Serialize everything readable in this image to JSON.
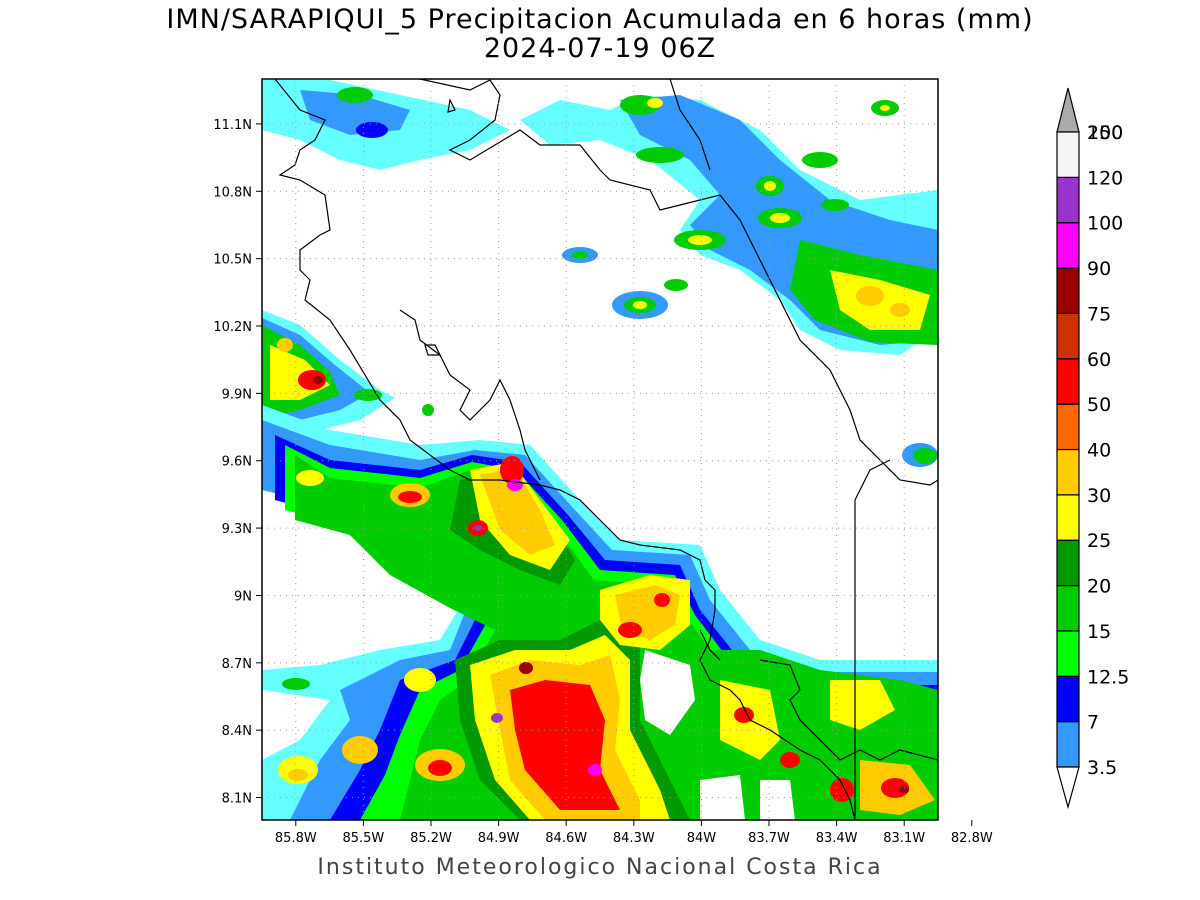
{
  "title": {
    "line1": "IMN/SARAPIQUI_5 Precipitacion Acumulada en 6 horas (mm)",
    "line2": "2024-07-19 06Z"
  },
  "footer": "Instituto Meteorologico Nacional Costa Rica",
  "map": {
    "lat_range": [
      8.0,
      11.3
    ],
    "lon_range": [
      -85.95,
      -82.95
    ],
    "lat_ticks": [
      {
        "value": 11.1,
        "label": "11.1N"
      },
      {
        "value": 10.8,
        "label": "10.8N"
      },
      {
        "value": 10.5,
        "label": "10.5N"
      },
      {
        "value": 10.2,
        "label": "10.2N"
      },
      {
        "value": 9.9,
        "label": "9.9N"
      },
      {
        "value": 9.6,
        "label": "9.6N"
      },
      {
        "value": 9.3,
        "label": "9.3N"
      },
      {
        "value": 9.0,
        "label": "9N"
      },
      {
        "value": 8.7,
        "label": "8.7N"
      },
      {
        "value": 8.4,
        "label": "8.4N"
      },
      {
        "value": 8.1,
        "label": "8.1N"
      }
    ],
    "lon_ticks": [
      {
        "value": -85.8,
        "label": "85.8W"
      },
      {
        "value": -85.5,
        "label": "85.5W"
      },
      {
        "value": -85.2,
        "label": "85.2W"
      },
      {
        "value": -84.9,
        "label": "84.9W"
      },
      {
        "value": -84.6,
        "label": "84.6W"
      },
      {
        "value": -84.3,
        "label": "84.3W"
      },
      {
        "value": -84.0,
        "label": "84W"
      },
      {
        "value": -83.7,
        "label": "83.7W"
      },
      {
        "value": -83.4,
        "label": "83.4W"
      },
      {
        "value": -83.1,
        "label": "83.1W"
      },
      {
        "value": -82.8,
        "label": "82.8W"
      }
    ],
    "grid": true
  },
  "colorbar": {
    "levels": [
      {
        "label": "3.5",
        "color": "#66ffff"
      },
      {
        "label": "7",
        "color": "#3399ff"
      },
      {
        "label": "12.5",
        "color": "#0000ff"
      },
      {
        "label": "15",
        "color": "#00ff00"
      },
      {
        "label": "20",
        "color": "#00cc00"
      },
      {
        "label": "25",
        "color": "#009900"
      },
      {
        "label": "30",
        "color": "#ffff00"
      },
      {
        "label": "40",
        "color": "#ffcc00"
      },
      {
        "label": "50",
        "color": "#ff6600"
      },
      {
        "label": "60",
        "color": "#ff0000"
      },
      {
        "label": "75",
        "color": "#cc3300"
      },
      {
        "label": "90",
        "color": "#990000"
      },
      {
        "label": "100",
        "color": "#ff00ff"
      },
      {
        "label": "120",
        "color": "#9933cc"
      },
      {
        "label": "150",
        "color": "#f5f5f5"
      },
      {
        "label": "200",
        "color": "#aaaaaa"
      }
    ]
  }
}
